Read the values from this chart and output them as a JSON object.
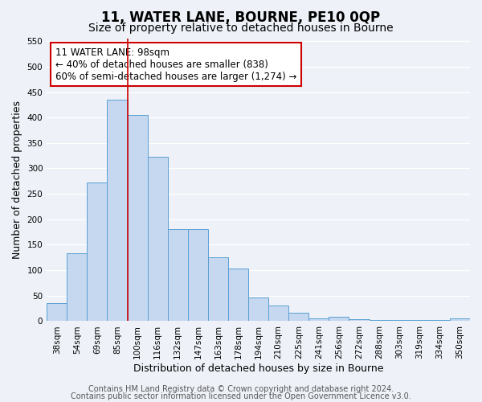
{
  "title": "11, WATER LANE, BOURNE, PE10 0QP",
  "subtitle": "Size of property relative to detached houses in Bourne",
  "xlabel": "Distribution of detached houses by size in Bourne",
  "ylabel": "Number of detached properties",
  "categories": [
    "38sqm",
    "54sqm",
    "69sqm",
    "85sqm",
    "100sqm",
    "116sqm",
    "132sqm",
    "147sqm",
    "163sqm",
    "178sqm",
    "194sqm",
    "210sqm",
    "225sqm",
    "241sqm",
    "256sqm",
    "272sqm",
    "288sqm",
    "303sqm",
    "319sqm",
    "334sqm",
    "350sqm"
  ],
  "values": [
    35,
    133,
    272,
    435,
    405,
    323,
    181,
    181,
    125,
    103,
    46,
    30,
    16,
    6,
    8,
    4,
    3,
    2,
    2,
    2,
    5
  ],
  "bar_color": "#c5d8f0",
  "bar_edge_color": "#5a9fd4",
  "vline_x_index": 4,
  "vline_color": "#cc0000",
  "ylim": [
    0,
    555
  ],
  "yticks": [
    0,
    50,
    100,
    150,
    200,
    250,
    300,
    350,
    400,
    450,
    500,
    550
  ],
  "annotation_box_text": "11 WATER LANE: 98sqm\n← 40% of detached houses are smaller (838)\n60% of semi-detached houses are larger (1,274) →",
  "annotation_box_edge_color": "#cc0000",
  "footer_line1": "Contains HM Land Registry data © Crown copyright and database right 2024.",
  "footer_line2": "Contains public sector information licensed under the Open Government Licence v3.0.",
  "bg_color": "#eef2f8",
  "plot_bg_color": "#eef2f8",
  "grid_color": "#ffffff",
  "title_fontsize": 12,
  "subtitle_fontsize": 10,
  "axis_label_fontsize": 9,
  "tick_fontsize": 7.5,
  "annotation_fontsize": 8.5,
  "footer_fontsize": 7
}
